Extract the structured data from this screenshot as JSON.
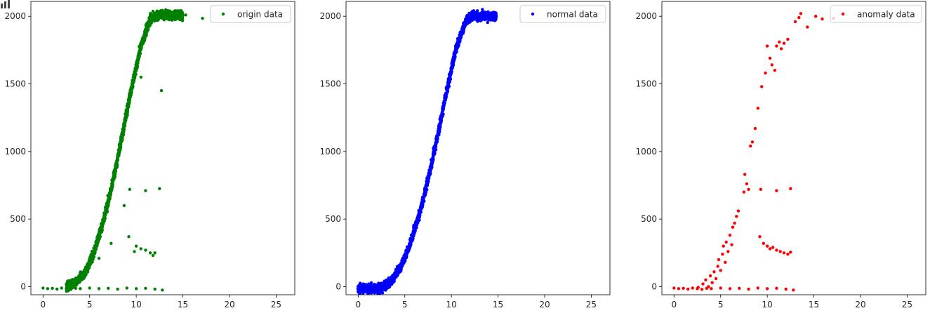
{
  "toolbar": {
    "icon": "bar-chart-icon"
  },
  "chart_data": [
    {
      "type": "scatter",
      "title": "",
      "xlabel": "",
      "ylabel": "",
      "xlim": [
        -1.3,
        27
      ],
      "ylim": [
        -60,
        2110
      ],
      "xticks": [
        0,
        5,
        10,
        15,
        20,
        25
      ],
      "yticks": [
        0,
        500,
        1000,
        1500,
        2000
      ],
      "grid": false,
      "legend_position": "top-right",
      "series": [
        {
          "name": "origin data",
          "color": "#008000",
          "curve": [
            [
              2.5,
              0
            ],
            [
              3.5,
              30
            ],
            [
              4.5,
              100
            ],
            [
              5.5,
              260
            ],
            [
              6.5,
              490
            ],
            [
              7.5,
              780
            ],
            [
              8.5,
              1120
            ],
            [
              9.5,
              1470
            ],
            [
              10.5,
              1780
            ],
            [
              11.5,
              1980
            ],
            [
              12.5,
              2010
            ],
            [
              15,
              2005
            ]
          ],
          "points": [
            [
              0,
              -10
            ],
            [
              0.5,
              -15
            ],
            [
              1,
              -12
            ],
            [
              1.5,
              -18
            ],
            [
              2,
              -10
            ],
            [
              2.5,
              -15
            ],
            [
              3,
              -20
            ],
            [
              3.5,
              -12
            ],
            [
              4,
              -15
            ],
            [
              5,
              -10
            ],
            [
              6,
              -15
            ],
            [
              7,
              -12
            ],
            [
              8,
              -18
            ],
            [
              9,
              -10
            ],
            [
              10,
              -15
            ],
            [
              11,
              -12
            ],
            [
              12,
              -18
            ],
            [
              12.8,
              -25
            ],
            [
              9.3,
              720
            ],
            [
              11,
              710
            ],
            [
              12.5,
              725
            ],
            [
              9.2,
              370
            ],
            [
              10,
              300
            ],
            [
              10.5,
              280
            ],
            [
              11,
              270
            ],
            [
              11.5,
              250
            ],
            [
              12,
              250
            ],
            [
              9.8,
              260
            ],
            [
              11.8,
              230
            ],
            [
              13.5,
              2000
            ],
            [
              14.5,
              1990
            ],
            [
              15.3,
              2010
            ],
            [
              17.1,
              1985
            ],
            [
              10.5,
              1550
            ],
            [
              8.7,
              600
            ],
            [
              7.3,
              320
            ],
            [
              6,
              210
            ],
            [
              12.7,
              1450
            ]
          ]
        }
      ]
    },
    {
      "type": "scatter",
      "title": "",
      "xlabel": "",
      "ylabel": "",
      "xlim": [
        -1.3,
        27
      ],
      "ylim": [
        -60,
        2110
      ],
      "xticks": [
        0,
        5,
        10,
        15,
        20,
        25
      ],
      "yticks": [
        0,
        500,
        1000,
        1500,
        2000
      ],
      "grid": false,
      "legend_position": "top-right",
      "series": [
        {
          "name": "normal data",
          "color": "#0000ff",
          "curve": [
            [
              0,
              -15
            ],
            [
              2.5,
              -15
            ],
            [
              3.5,
              40
            ],
            [
              4.5,
              140
            ],
            [
              5.5,
              300
            ],
            [
              6.5,
              520
            ],
            [
              7.5,
              790
            ],
            [
              8.5,
              1110
            ],
            [
              9.5,
              1450
            ],
            [
              10.5,
              1760
            ],
            [
              11.5,
              1960
            ],
            [
              12.3,
              2005
            ],
            [
              14.8,
              2000
            ]
          ],
          "points": []
        }
      ]
    },
    {
      "type": "scatter",
      "title": "",
      "xlabel": "",
      "ylabel": "",
      "xlim": [
        -1.3,
        27
      ],
      "ylim": [
        -60,
        2110
      ],
      "xticks": [
        0,
        5,
        10,
        15,
        20,
        25
      ],
      "yticks": [
        0,
        500,
        1000,
        1500,
        2000
      ],
      "grid": false,
      "legend_position": "top-right",
      "series": [
        {
          "name": "anomaly data",
          "color": "#ff0000",
          "curve": [],
          "points": [
            [
              0,
              -10
            ],
            [
              0.5,
              -15
            ],
            [
              1,
              -12
            ],
            [
              1.5,
              -18
            ],
            [
              2,
              -10
            ],
            [
              2.5,
              -15
            ],
            [
              3,
              -20
            ],
            [
              3.5,
              -12
            ],
            [
              4,
              -15
            ],
            [
              5,
              -10
            ],
            [
              6,
              -15
            ],
            [
              7,
              -12
            ],
            [
              8,
              -18
            ],
            [
              9,
              -10
            ],
            [
              10,
              -15
            ],
            [
              11,
              -12
            ],
            [
              12,
              -18
            ],
            [
              12.8,
              -25
            ],
            [
              2.6,
              -5
            ],
            [
              3.1,
              20
            ],
            [
              3.4,
              50
            ],
            [
              3.7,
              0
            ],
            [
              3.9,
              80
            ],
            [
              4.1,
              30
            ],
            [
              4.3,
              110
            ],
            [
              4.5,
              60
            ],
            [
              4.7,
              150
            ],
            [
              4.8,
              200
            ],
            [
              5,
              120
            ],
            [
              5.2,
              240
            ],
            [
              5.3,
              300
            ],
            [
              5.5,
              180
            ],
            [
              5.6,
              330
            ],
            [
              5.8,
              260
            ],
            [
              6,
              380
            ],
            [
              6.2,
              310
            ],
            [
              6.3,
              440
            ],
            [
              6.5,
              470
            ],
            [
              6.7,
              520
            ],
            [
              6.9,
              560
            ],
            [
              7.5,
              700
            ],
            [
              7.6,
              830
            ],
            [
              7.8,
              760
            ],
            [
              8,
              720
            ],
            [
              8.2,
              1040
            ],
            [
              8.4,
              1070
            ],
            [
              8.7,
              1170
            ],
            [
              9,
              1320
            ],
            [
              9.4,
              1480
            ],
            [
              9.8,
              1580
            ],
            [
              10,
              1780
            ],
            [
              10.3,
              1690
            ],
            [
              10.5,
              1640
            ],
            [
              10.8,
              1600
            ],
            [
              11,
              1780
            ],
            [
              11.3,
              1810
            ],
            [
              11.5,
              1760
            ],
            [
              11.8,
              1800
            ],
            [
              12.2,
              1830
            ],
            [
              9.3,
              720
            ],
            [
              11,
              710
            ],
            [
              12.5,
              725
            ],
            [
              9.2,
              370
            ],
            [
              9.6,
              320
            ],
            [
              10,
              300
            ],
            [
              10.3,
              280
            ],
            [
              10.6,
              290
            ],
            [
              11,
              270
            ],
            [
              11.4,
              260
            ],
            [
              11.8,
              250
            ],
            [
              12.2,
              240
            ],
            [
              12.5,
              255
            ],
            [
              13,
              1960
            ],
            [
              13.4,
              1990
            ],
            [
              13.6,
              2020
            ],
            [
              14.3,
              1920
            ],
            [
              15.2,
              2000
            ],
            [
              15.9,
              1980
            ],
            [
              17.1,
              1985
            ]
          ]
        }
      ]
    }
  ]
}
